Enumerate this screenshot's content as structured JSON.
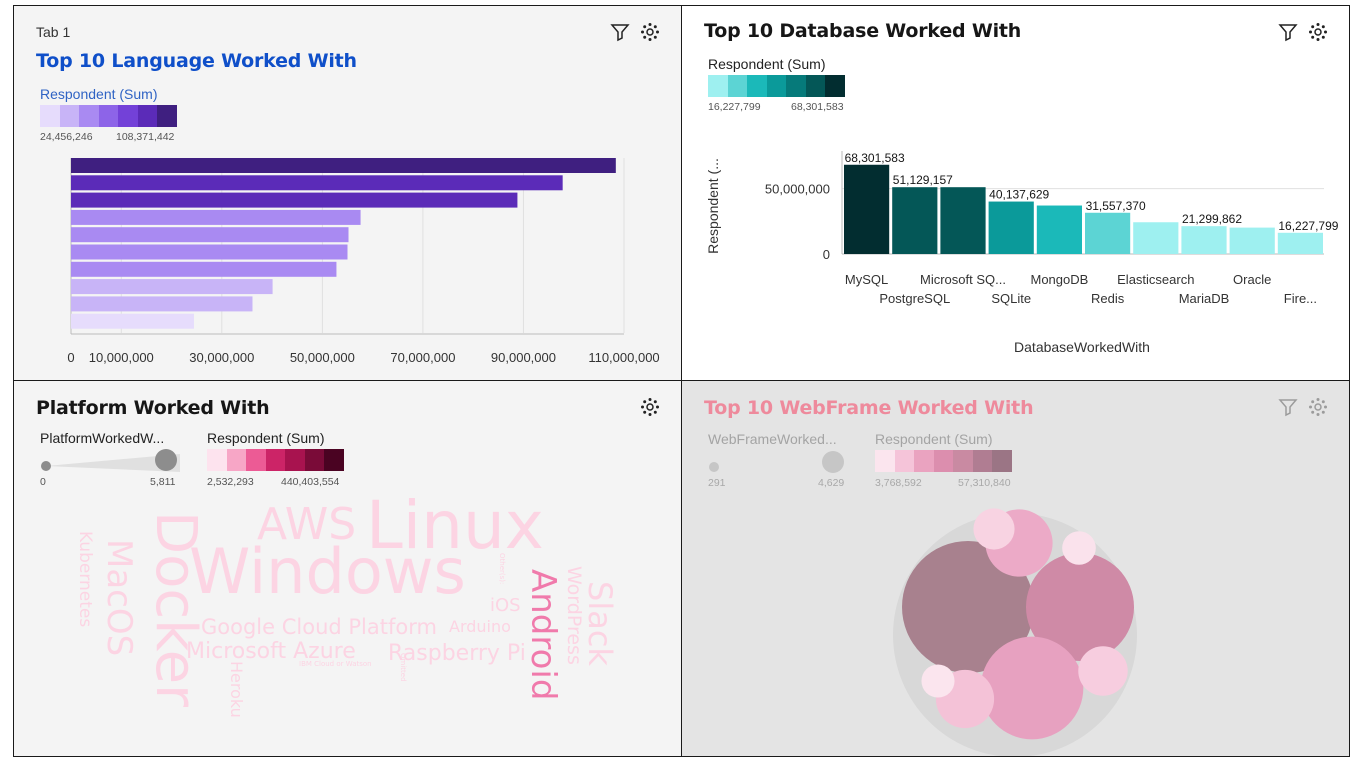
{
  "tab": {
    "label": "Tab 1"
  },
  "panels": {
    "language": {
      "title": "Top 10 Language Worked With",
      "legend_title": "Respondent (Sum)",
      "legend_min": "24,456,246",
      "legend_max": "108,371,442",
      "legend_colors": [
        "#e6dcfc",
        "#c8b4f7",
        "#a98af2",
        "#8d64e8",
        "#7341d8",
        "#5b2bb8",
        "#3f1f80"
      ],
      "ticks": [
        "0",
        "10,000,000",
        "30,000,000",
        "50,000,000",
        "70,000,000",
        "90,000,000",
        "110,000,000"
      ]
    },
    "database": {
      "title": "Top 10 Database Worked With",
      "legend_title": "Respondent (Sum)",
      "legend_min": "16,227,799",
      "legend_max": "68,301,583",
      "legend_colors": [
        "#9ef0f0",
        "#5cd4d4",
        "#1bb9b9",
        "#0b9a9a",
        "#067a7a",
        "#045757",
        "#022d30"
      ],
      "ylabel": "Respondent (...",
      "xlabel": "DatabaseWorkedWith",
      "yticks": [
        "0",
        "50,000,000"
      ]
    },
    "platform": {
      "title": "Platform Worked With",
      "size_legend_title": "PlatformWorkedW...",
      "size_min": "0",
      "size_max": "5,811",
      "color_legend_title": "Respondent (Sum)",
      "color_min": "2,532,293",
      "color_max": "440,403,554",
      "legend_colors": [
        "#fde3ee",
        "#f7a6c6",
        "#ec5b95",
        "#cc2467",
        "#a8134f",
        "#7a0b38",
        "#4a0322"
      ],
      "words": [
        {
          "text": "Linux",
          "size": 66,
          "color": "#fcd4e3",
          "rot": 0
        },
        {
          "text": "Windows",
          "size": 62,
          "color": "#fcd4e3",
          "rot": 0
        },
        {
          "text": "Docker",
          "size": 56,
          "color": "#fcd4e3",
          "rot": 90
        },
        {
          "text": "AWS",
          "size": 44,
          "color": "#fcd4e3",
          "rot": 0
        },
        {
          "text": "Android",
          "size": 34,
          "color": "#f07aab",
          "rot": 90
        },
        {
          "text": "MacOS",
          "size": 34,
          "color": "#fcd4e3",
          "rot": 90
        },
        {
          "text": "Slack",
          "size": 32,
          "color": "#fcd4e3",
          "rot": 90
        },
        {
          "text": "Google Cloud Platform",
          "size": 21,
          "color": "#fcd4e3",
          "rot": 0
        },
        {
          "text": "Microsoft Azure",
          "size": 22,
          "color": "#fcd4e3",
          "rot": 0
        },
        {
          "text": "Raspberry Pi",
          "size": 22,
          "color": "#fcd4e3",
          "rot": 0
        },
        {
          "text": "WordPress",
          "size": 19,
          "color": "#fcd4e3",
          "rot": 90
        },
        {
          "text": "Kubernetes",
          "size": 17,
          "color": "#fcd4e3",
          "rot": 90
        },
        {
          "text": "iOS",
          "size": 18,
          "color": "#fcd4e3",
          "rot": 0
        },
        {
          "text": "Arduino",
          "size": 16,
          "color": "#fcd4e3",
          "rot": 0
        },
        {
          "text": "Heroku",
          "size": 16,
          "color": "#fcd4e3",
          "rot": 90
        },
        {
          "text": "IBM Cloud or Watson",
          "size": 7,
          "color": "#fcd4e3",
          "rot": 0
        },
        {
          "text": "Other(s):",
          "size": 7,
          "color": "#fcd4e3",
          "rot": 90
        },
        {
          "text": "Omitted",
          "size": 7,
          "color": "#fcd4e3",
          "rot": 90
        }
      ]
    },
    "webframe": {
      "title": "Top 10 WebFrame Worked With",
      "size_legend_title": "WebFrameWorked...",
      "size_min": "291",
      "size_max": "4,629",
      "color_legend_title": "Respondent (Sum)",
      "color_min": "3,768,592",
      "color_max": "57,310,840",
      "legend_colors": [
        "#fbe5ee",
        "#f5c4d9",
        "#eaa3c0",
        "#dc8eae",
        "#c98aa2",
        "#b07d92",
        "#9b7585"
      ]
    }
  },
  "chart_data": [
    {
      "type": "bar",
      "orientation": "horizontal",
      "title": "Top 10 Language Worked With",
      "legend": "Respondent (Sum)",
      "series": [
        {
          "name": "Respondent (Sum)",
          "values": [
            108371442,
            97800000,
            88800000,
            57600000,
            55200000,
            55000000,
            52800000,
            40100000,
            36100000,
            24456246
          ]
        }
      ],
      "xlim": [
        0,
        110000000
      ],
      "grid": true
    },
    {
      "type": "bar",
      "title": "Top 10 Database Worked With",
      "xlabel": "DatabaseWorkedWith",
      "ylabel": "Respondent (...",
      "categories": [
        "MySQL",
        "PostgreSQL",
        "Microsoft SQ...",
        "SQLite",
        "MongoDB",
        "Redis",
        "Elasticsearch",
        "MariaDB",
        "Oracle",
        "Fire..."
      ],
      "values": [
        68301583,
        51129157,
        51129157,
        40137629,
        37100000,
        31557370,
        24300000,
        21299862,
        20200000,
        16227799
      ],
      "labels": [
        "68,301,583",
        "51,129,157",
        "",
        "40,137,629",
        "",
        "31,557,370",
        "",
        "21,299,862",
        "",
        "16,227,799"
      ],
      "colors": [
        "#022d30",
        "#045757",
        "#045757",
        "#0b9a9a",
        "#1bb9b9",
        "#5cd4d4",
        "#9ef0f0",
        "#9ef0f0",
        "#9ef0f0",
        "#9ef0f0"
      ],
      "ylim": [
        0,
        75000000
      ],
      "grid": true
    },
    {
      "type": "bubble",
      "title": "Top 10 WebFrame Worked With",
      "bubbles": [
        {
          "value": 4629,
          "color": "#a8818e"
        },
        {
          "value": 3100,
          "color": "#cf8aa6"
        },
        {
          "value": 2800,
          "color": "#e7a1c0"
        },
        {
          "value": 1200,
          "color": "#ecaac7"
        },
        {
          "value": 900,
          "color": "#f4c2d7"
        },
        {
          "value": 650,
          "color": "#f7cddf"
        },
        {
          "value": 450,
          "color": "#f8d3e2"
        },
        {
          "value": 300,
          "color": "#fae2ec"
        },
        {
          "value": 291,
          "color": "#fbe5ee"
        }
      ]
    }
  ]
}
